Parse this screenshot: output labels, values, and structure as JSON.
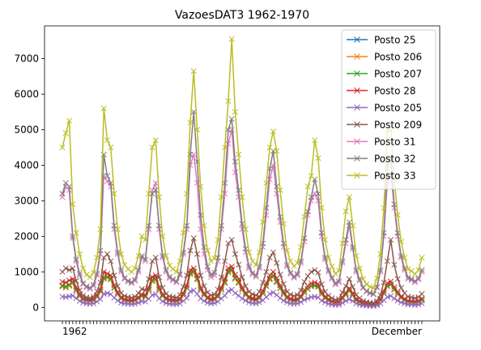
{
  "chart_data": {
    "type": "line",
    "title": "VazoesDAT3 1962-1970",
    "xlabel": "",
    "ylabel": "",
    "ylim": [
      -380,
      7920
    ],
    "yticks": [
      0,
      1000,
      2000,
      3000,
      4000,
      5000,
      6000,
      7000
    ],
    "x_tick_texts": [
      "1962",
      "",
      "",
      "",
      "",
      "",
      "",
      "",
      "",
      "",
      "",
      "",
      "",
      "",
      "",
      "",
      "",
      "",
      "",
      "",
      "",
      "",
      "",
      "",
      "",
      "",
      "",
      "",
      "",
      "",
      "",
      "",
      "",
      "",
      "",
      "",
      "",
      "",
      "",
      "",
      "",
      "",
      "",
      "",
      "",
      "",
      "",
      "",
      "",
      "",
      "",
      "",
      "",
      "",
      "",
      "",
      "",
      "",
      "",
      "",
      "",
      "",
      "",
      "",
      "",
      "",
      "",
      "",
      "",
      "",
      "",
      "",
      "",
      "",
      "",
      "",
      "",
      "",
      "",
      "",
      "",
      "",
      "",
      "",
      "",
      "",
      "",
      "",
      "",
      "",
      "",
      "",
      "",
      "",
      "",
      "",
      "",
      "",
      "",
      "",
      "",
      "",
      "",
      "",
      "December"
    ],
    "legend": {
      "position": "upper-right"
    },
    "grid": false,
    "marker": "x",
    "series": [
      {
        "name": "Posto 25",
        "color": "#1f77b4",
        "values": [
          600,
          560,
          620,
          700,
          480,
          320,
          220,
          190,
          180,
          200,
          300,
          450,
          820,
          850,
          800,
          550,
          380,
          250,
          200,
          180,
          170,
          190,
          250,
          320,
          300,
          500,
          750,
          800,
          500,
          320,
          230,
          190,
          180,
          170,
          210,
          350,
          550,
          950,
          1000,
          800,
          500,
          350,
          250,
          200,
          220,
          300,
          500,
          700,
          1000,
          1050,
          820,
          700,
          500,
          360,
          260,
          220,
          200,
          260,
          400,
          600,
          800,
          880,
          720,
          540,
          390,
          260,
          210,
          180,
          200,
          280,
          420,
          520,
          600,
          610,
          580,
          380,
          260,
          190,
          150,
          120,
          130,
          250,
          360,
          480,
          350,
          200,
          150,
          100,
          80,
          70,
          60,
          100,
          200,
          400,
          600,
          650,
          500,
          380,
          270,
          200,
          150,
          140,
          130,
          150,
          200
        ]
      },
      {
        "name": "Posto 206",
        "color": "#ff7f0e",
        "values": [
          580,
          550,
          600,
          680,
          470,
          310,
          210,
          180,
          170,
          190,
          290,
          440,
          800,
          830,
          780,
          540,
          370,
          240,
          190,
          170,
          160,
          180,
          240,
          310,
          290,
          480,
          730,
          780,
          490,
          310,
          220,
          180,
          170,
          160,
          200,
          340,
          540,
          930,
          980,
          780,
          490,
          340,
          240,
          190,
          210,
          290,
          490,
          680,
          980,
          1030,
          800,
          680,
          490,
          350,
          250,
          210,
          190,
          250,
          390,
          590,
          780,
          860,
          700,
          530,
          380,
          250,
          200,
          170,
          190,
          270,
          410,
          510,
          590,
          600,
          570,
          370,
          250,
          180,
          140,
          110,
          120,
          240,
          350,
          470,
          340,
          190,
          140,
          90,
          70,
          60,
          50,
          90,
          190,
          390,
          590,
          640,
          490,
          370,
          260,
          190,
          140,
          130,
          120,
          140,
          190
        ]
      },
      {
        "name": "Posto 207",
        "color": "#2ca02c",
        "values": [
          620,
          590,
          640,
          720,
          500,
          330,
          230,
          200,
          190,
          210,
          310,
          460,
          840,
          870,
          820,
          560,
          390,
          260,
          210,
          190,
          180,
          200,
          260,
          330,
          310,
          510,
          770,
          820,
          510,
          330,
          240,
          200,
          190,
          180,
          220,
          360,
          560,
          970,
          1020,
          820,
          510,
          360,
          260,
          210,
          230,
          310,
          510,
          720,
          1020,
          1070,
          840,
          720,
          510,
          370,
          270,
          230,
          210,
          270,
          410,
          610,
          820,
          900,
          740,
          550,
          400,
          270,
          220,
          190,
          210,
          290,
          430,
          530,
          610,
          620,
          590,
          390,
          270,
          200,
          160,
          130,
          140,
          260,
          370,
          490,
          360,
          210,
          160,
          110,
          90,
          80,
          70,
          110,
          210,
          410,
          610,
          660,
          510,
          390,
          280,
          210,
          160,
          150,
          140,
          160,
          210
        ]
      },
      {
        "name": "Posto 28",
        "color": "#d62728",
        "values": [
          720,
          700,
          760,
          800,
          560,
          380,
          260,
          230,
          210,
          240,
          350,
          500,
          1000,
          950,
          900,
          620,
          430,
          290,
          230,
          210,
          200,
          220,
          290,
          370,
          340,
          560,
          860,
          900,
          560,
          370,
          270,
          220,
          210,
          200,
          250,
          400,
          620,
          1050,
          1100,
          900,
          560,
          400,
          290,
          240,
          260,
          350,
          560,
          800,
          1100,
          1150,
          920,
          800,
          560,
          410,
          300,
          260,
          240,
          300,
          460,
          680,
          900,
          1000,
          820,
          620,
          450,
          300,
          250,
          220,
          240,
          320,
          480,
          600,
          680,
          700,
          660,
          440,
          300,
          230,
          180,
          150,
          160,
          290,
          410,
          540,
          400,
          240,
          180,
          130,
          110,
          100,
          90,
          130,
          240,
          460,
          680,
          730,
          570,
          440,
          310,
          240,
          190,
          180,
          170,
          190,
          250
        ]
      },
      {
        "name": "Posto 205",
        "color": "#9467bd",
        "values": [
          300,
          290,
          310,
          330,
          260,
          180,
          130,
          110,
          100,
          110,
          160,
          230,
          380,
          400,
          370,
          270,
          190,
          130,
          110,
          100,
          90,
          100,
          130,
          170,
          160,
          240,
          350,
          370,
          250,
          170,
          120,
          100,
          90,
          90,
          110,
          180,
          260,
          450,
          480,
          380,
          250,
          180,
          130,
          110,
          120,
          160,
          250,
          330,
          460,
          500,
          400,
          330,
          250,
          190,
          140,
          120,
          110,
          140,
          200,
          290,
          380,
          420,
          350,
          260,
          190,
          140,
          110,
          100,
          110,
          150,
          210,
          250,
          290,
          300,
          280,
          190,
          140,
          100,
          80,
          70,
          70,
          130,
          180,
          230,
          180,
          110,
          80,
          60,
          50,
          40,
          40,
          60,
          110,
          200,
          290,
          320,
          250,
          190,
          140,
          110,
          80,
          80,
          70,
          80,
          110
        ]
      },
      {
        "name": "Posto 209",
        "color": "#8c564b",
        "values": [
          1000,
          1100,
          1050,
          1100,
          750,
          480,
          330,
          280,
          260,
          300,
          450,
          700,
          1400,
          1500,
          1300,
          900,
          600,
          400,
          320,
          290,
          270,
          300,
          400,
          520,
          480,
          800,
          1300,
          1400,
          850,
          550,
          380,
          310,
          290,
          270,
          350,
          580,
          900,
          1600,
          1950,
          1500,
          900,
          600,
          420,
          340,
          360,
          500,
          850,
          1300,
          1800,
          1900,
          1500,
          1200,
          850,
          600,
          440,
          370,
          340,
          440,
          700,
          1000,
          1400,
          1550,
          1250,
          920,
          660,
          440,
          360,
          320,
          350,
          480,
          720,
          880,
          1000,
          1050,
          980,
          650,
          440,
          330,
          260,
          210,
          230,
          420,
          600,
          800,
          580,
          350,
          260,
          180,
          150,
          130,
          120,
          180,
          350,
          700,
          1300,
          1900,
          1200,
          800,
          550,
          400,
          300,
          280,
          260,
          290,
          380
        ]
      },
      {
        "name": "Posto 31",
        "color": "#e377c2",
        "values": [
          3100,
          3400,
          3300,
          1950,
          1300,
          900,
          650,
          560,
          520,
          600,
          900,
          1500,
          3700,
          3550,
          3400,
          2200,
          1500,
          1000,
          800,
          720,
          680,
          740,
          1000,
          1400,
          1300,
          2200,
          3300,
          3500,
          2200,
          1400,
          1000,
          820,
          760,
          700,
          900,
          1500,
          2200,
          4000,
          4300,
          3500,
          2200,
          1500,
          1050,
          850,
          900,
          1300,
          2200,
          3200,
          4600,
          5000,
          3800,
          3100,
          2200,
          1550,
          1100,
          930,
          860,
          1100,
          1700,
          2600,
          3600,
          4000,
          3200,
          2400,
          1700,
          1150,
          940,
          830,
          900,
          1250,
          1850,
          2600,
          3000,
          3200,
          3000,
          2000,
          1350,
          1000,
          800,
          640,
          700,
          1250,
          1800,
          2300,
          1650,
          1000,
          750,
          540,
          440,
          390,
          360,
          550,
          1000,
          2000,
          3500,
          3800,
          2800,
          2000,
          1400,
          1050,
          800,
          760,
          700,
          780,
          1000
        ]
      },
      {
        "name": "Posto 32",
        "color": "#7f7f7f",
        "values": [
          3200,
          3500,
          3400,
          2000,
          1350,
          950,
          680,
          590,
          550,
          640,
          950,
          1600,
          4300,
          3700,
          3500,
          2300,
          1550,
          1050,
          830,
          750,
          710,
          780,
          1050,
          1450,
          1350,
          2300,
          3200,
          3300,
          2300,
          1450,
          1050,
          860,
          790,
          730,
          940,
          1550,
          2300,
          4300,
          5500,
          4100,
          2600,
          1700,
          1150,
          920,
          980,
          1400,
          2300,
          3500,
          5000,
          5300,
          4100,
          3300,
          2350,
          1650,
          1150,
          970,
          900,
          1150,
          1800,
          2800,
          3900,
          4400,
          3400,
          2550,
          1800,
          1200,
          980,
          870,
          940,
          1300,
          1950,
          2700,
          3100,
          3600,
          3200,
          2100,
          1400,
          1050,
          840,
          680,
          740,
          1300,
          1900,
          2400,
          1700,
          1050,
          790,
          570,
          460,
          410,
          380,
          580,
          1050,
          2100,
          4000,
          4200,
          2900,
          2100,
          1450,
          1100,
          840,
          800,
          740,
          820,
          1050
        ]
      },
      {
        "name": "Posto 33",
        "color": "#bcbd22",
        "values": [
          4500,
          4900,
          5250,
          2900,
          2100,
          1500,
          1100,
          920,
          850,
          980,
          1400,
          2200,
          5600,
          4700,
          4500,
          3200,
          2200,
          1500,
          1200,
          1080,
          1000,
          1100,
          1450,
          2000,
          1900,
          3200,
          4500,
          4700,
          3100,
          2000,
          1450,
          1180,
          1080,
          1000,
          1300,
          2100,
          3200,
          5200,
          6650,
          5000,
          3400,
          2300,
          1600,
          1300,
          1380,
          1900,
          3100,
          4500,
          5800,
          7550,
          5500,
          4300,
          3100,
          2200,
          1550,
          1300,
          1200,
          1550,
          2400,
          3500,
          4500,
          4950,
          4400,
          3300,
          2350,
          1600,
          1300,
          1160,
          1250,
          1700,
          2550,
          3400,
          3700,
          4700,
          4200,
          2800,
          1900,
          1400,
          1150,
          950,
          1030,
          1800,
          2700,
          3100,
          2300,
          1450,
          1100,
          800,
          650,
          580,
          540,
          820,
          1500,
          2800,
          5000,
          5000,
          3600,
          2600,
          1850,
          1400,
          1080,
          1020,
          940,
          1050,
          1400
        ]
      }
    ]
  }
}
